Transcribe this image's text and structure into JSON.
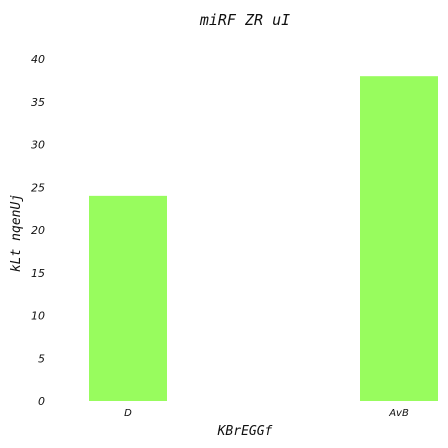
{
  "chart_data": {
    "type": "bar",
    "title": "miRF ZR uI",
    "xlabel": "KBrEGGf",
    "ylabel": "kLt nqenUj",
    "categories": [
      "D",
      "AvB"
    ],
    "values": [
      24,
      38
    ],
    "ylim": [
      0,
      42
    ],
    "yticks": [
      0,
      5,
      10,
      15,
      20,
      25,
      30,
      35,
      40
    ],
    "bar_color": "#98fc5e",
    "grid": false,
    "legend": "none"
  }
}
